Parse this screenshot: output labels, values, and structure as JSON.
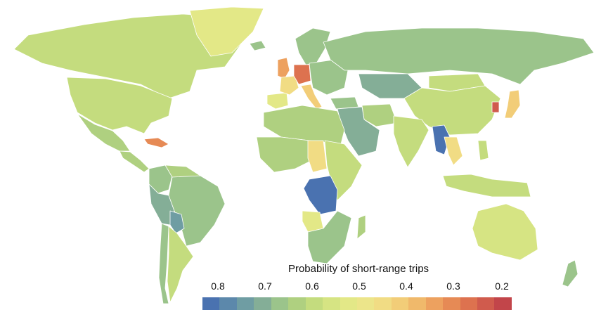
{
  "legend": {
    "title": "Probability of short-range trips",
    "ticks": [
      "0.8",
      "0.7",
      "0.6",
      "0.5",
      "0.4",
      "0.3",
      "0.2"
    ],
    "colors": [
      "#4a72b0",
      "#5c88ab",
      "#6f9da3",
      "#84ae97",
      "#9bc48b",
      "#afd080",
      "#c4dc7e",
      "#d6e483",
      "#e3e887",
      "#ece58a",
      "#f1dc84",
      "#f2cd78",
      "#f0b96b",
      "#eda15f",
      "#e68a55",
      "#dd724f",
      "#d05b4d",
      "#c2454a"
    ]
  },
  "colors": {
    "background": "#ffffff",
    "no_data": "#d8cfe0"
  },
  "map_regions": [
    {
      "name": "Canada",
      "value": 0.62
    },
    {
      "name": "United States",
      "value": 0.6
    },
    {
      "name": "Mexico",
      "value": 0.66
    },
    {
      "name": "Greenland",
      "value": 0.55
    },
    {
      "name": "Central America",
      "value": 0.63
    },
    {
      "name": "Caribbean",
      "value": 0.3
    },
    {
      "name": "Colombia",
      "value": 0.67
    },
    {
      "name": "Venezuela",
      "value": 0.65
    },
    {
      "name": "Brazil",
      "value": 0.7
    },
    {
      "name": "Peru",
      "value": 0.72
    },
    {
      "name": "Bolivia",
      "value": 0.74
    },
    {
      "name": "Argentina",
      "value": 0.62
    },
    {
      "name": "Chile",
      "value": 0.7
    },
    {
      "name": "Iceland",
      "value": 0.68
    },
    {
      "name": "United Kingdom",
      "value": 0.35
    },
    {
      "name": "Scandinavia",
      "value": 0.68
    },
    {
      "name": "Germany",
      "value": 0.27
    },
    {
      "name": "France",
      "value": 0.45
    },
    {
      "name": "Iberia",
      "value": 0.55
    },
    {
      "name": "Italy",
      "value": 0.42
    },
    {
      "name": "Eastern Europe",
      "value": 0.7
    },
    {
      "name": "Russia",
      "value": 0.7
    },
    {
      "name": "Kazakhstan",
      "value": 0.72
    },
    {
      "name": "Mongolia",
      "value": 0.62
    },
    {
      "name": "China",
      "value": 0.62
    },
    {
      "name": "Japan",
      "value": 0.42
    },
    {
      "name": "South Korea",
      "value": 0.25
    },
    {
      "name": "Turkey",
      "value": 0.68
    },
    {
      "name": "Middle East",
      "value": 0.72
    },
    {
      "name": "Iran",
      "value": 0.64
    },
    {
      "name": "India",
      "value": 0.6
    },
    {
      "name": "Myanmar",
      "value": 0.82
    },
    {
      "name": "Thailand",
      "value": 0.45
    },
    {
      "name": "Indonesia",
      "value": 0.62
    },
    {
      "name": "Philippines",
      "value": 0.6
    },
    {
      "name": "North Africa",
      "value": 0.66
    },
    {
      "name": "West Africa",
      "value": 0.64
    },
    {
      "name": "Central African Republic",
      "value": 0.45
    },
    {
      "name": "DR Congo",
      "value": 0.84
    },
    {
      "name": "East Africa",
      "value": 0.62
    },
    {
      "name": "Angola",
      "value": 0.55
    },
    {
      "name": "Southern Africa",
      "value": 0.7
    },
    {
      "name": "Madagascar",
      "value": 0.66
    },
    {
      "name": "Australia",
      "value": 0.57
    },
    {
      "name": "New Zealand",
      "value": 0.68
    }
  ]
}
